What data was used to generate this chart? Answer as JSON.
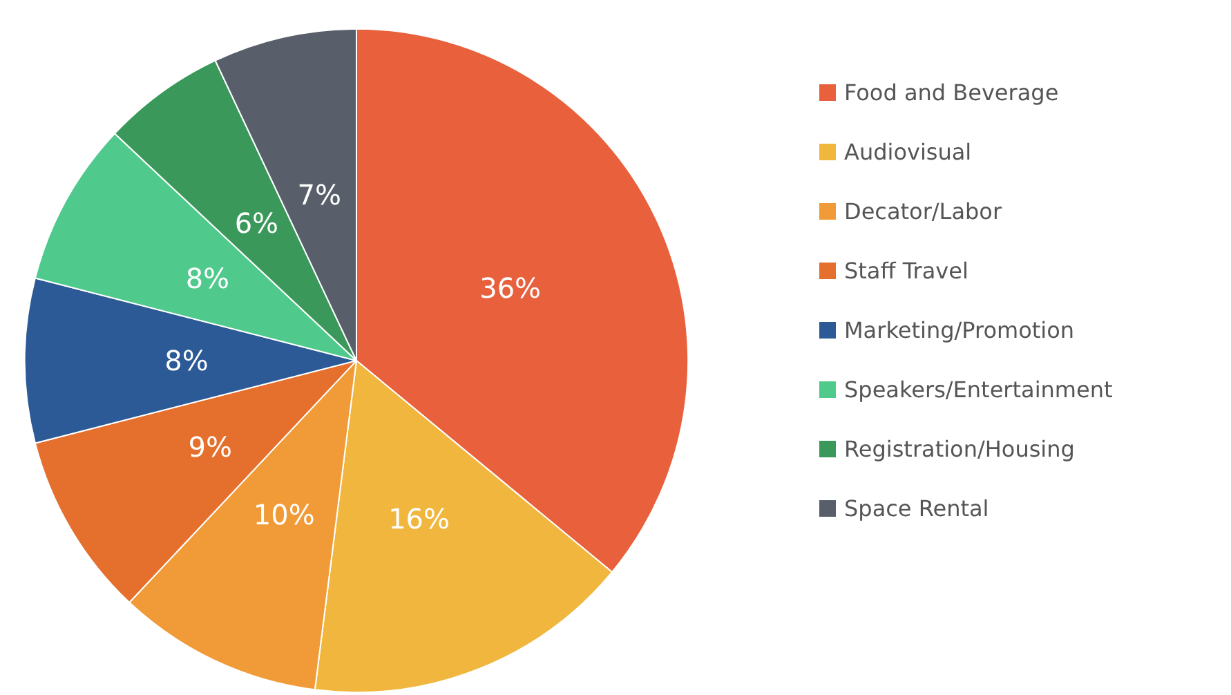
{
  "chart_data": {
    "type": "pie",
    "categories": [
      "Food and Beverage",
      "Audiovisual",
      "Decator/Labor",
      "Staff Travel",
      "Marketing/Promotion",
      "Speakers/Entertainment",
      "Registration/Housing",
      "Space Rental"
    ],
    "values": [
      36,
      16,
      10,
      9,
      8,
      8,
      6,
      7
    ],
    "colors": [
      "#e8603c",
      "#f1b63d",
      "#f09b38",
      "#e56f2d",
      "#2b5a96",
      "#4fca8c",
      "#3a995a",
      "#585f6a"
    ],
    "value_labels": [
      "36%",
      "16%",
      "10%",
      "9%",
      "8%",
      "8%",
      "6%",
      "7%"
    ],
    "legend": "right"
  }
}
